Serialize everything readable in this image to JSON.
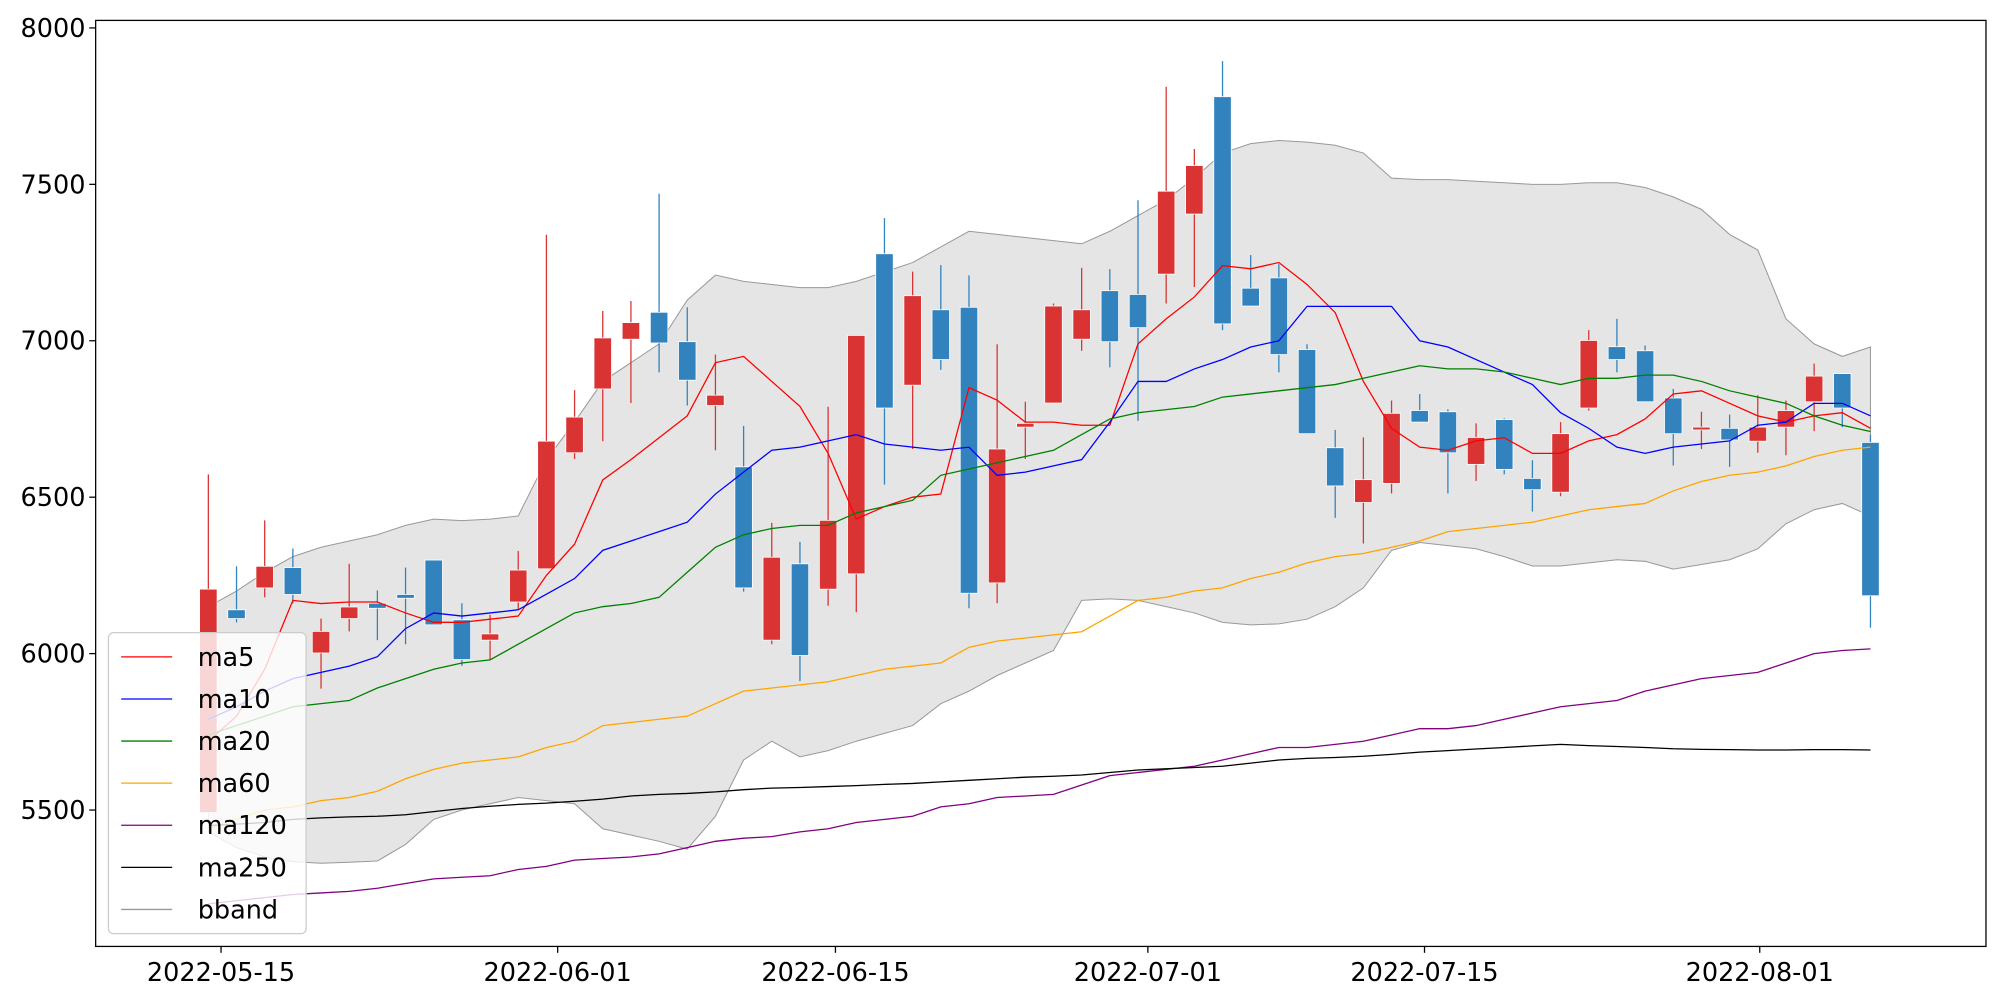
{
  "chart_data": {
    "type": "candlestick",
    "categories": [
      null,
      null,
      null,
      null,
      null,
      null,
      null,
      null,
      null,
      null,
      null,
      null,
      null,
      null,
      null,
      null,
      null,
      null,
      null,
      null,
      null,
      null,
      null,
      null,
      null,
      null,
      null,
      null,
      null,
      null,
      null,
      null,
      null,
      null,
      null,
      null,
      null,
      null,
      null,
      null,
      null,
      null,
      null,
      null,
      null,
      null,
      null,
      null,
      null,
      null,
      null,
      null,
      null,
      null,
      null,
      null,
      null,
      null,
      null,
      null
    ],
    "open": [
      5492,
      6140,
      6210,
      6275,
      6002,
      6112,
      6161,
      6189,
      6299,
      6108,
      6043,
      6165,
      6271,
      6642,
      6846,
      7005,
      7091,
      6997,
      6793,
      6597,
      6043,
      6287,
      6206,
      6255,
      7278,
      6858,
      7099,
      7107,
      6226,
      6724,
      6801,
      7005,
      7160,
      7148,
      7213,
      7405,
      7780,
      7168,
      7201,
      6972,
      6658,
      6483,
      6544,
      6777,
      6773,
      6605,
      6748,
      6560,
      6516,
      6785,
      6981,
      6968,
      6817,
      6715,
      6720,
      6679,
      6724,
      6805,
      6895,
      6675
    ],
    "high": [
      6573,
      6279,
      6426,
      6336,
      6112,
      6287,
      6202,
      6275,
      6299,
      6161,
      6124,
      6328,
      7339,
      6842,
      7095,
      7127,
      7470,
      7107,
      6956,
      6728,
      6418,
      6357,
      6789,
      7017,
      7392,
      7221,
      7242,
      7209,
      6989,
      6805,
      7119,
      7233,
      7229,
      7449,
      7812,
      7613,
      7894,
      7274,
      7245,
      6989,
      6715,
      6691,
      6809,
      6830,
      6781,
      6736,
      6752,
      6618,
      6740,
      7034,
      7070,
      6985,
      6846,
      6773,
      6764,
      6826,
      6809,
      6927,
      6895,
      6699
    ],
    "low": [
      5490,
      6100,
      6180,
      6160,
      5888,
      6071,
      6043,
      6030,
      6092,
      5961,
      5981,
      6140,
      6271,
      6622,
      6679,
      6801,
      6899,
      6793,
      6650,
      6198,
      6030,
      5912,
      6153,
      6132,
      6540,
      6654,
      6907,
      6145,
      6161,
      6622,
      6801,
      6968,
      6915,
      6744,
      7119,
      7172,
      7034,
      7111,
      6899,
      6703,
      6434,
      6352,
      6512,
      6740,
      6512,
      6552,
      6573,
      6454,
      6503,
      6777,
      6899,
      6805,
      6601,
      6654,
      6597,
      6642,
      6634,
      6711,
      6724,
      6083
    ],
    "close": [
      6206,
      6112,
      6279,
      6189,
      6071,
      6149,
      6145,
      6177,
      6092,
      5981,
      6063,
      6267,
      6679,
      6756,
      7009,
      7058,
      6993,
      6874,
      6826,
      6210,
      6308,
      5994,
      6426,
      7017,
      6785,
      7144,
      6940,
      6193,
      6654,
      6736,
      7111,
      7099,
      6997,
      7042,
      7478,
      7560,
      7054,
      7111,
      6956,
      6703,
      6536,
      6556,
      6768,
      6740,
      6642,
      6691,
      6589,
      6524,
      6703,
      7001,
      6940,
      6805,
      6703,
      6724,
      6683,
      6724,
      6777,
      6887,
      6785,
      6185
    ],
    "up_color": "#d93333",
    "down_color": "#3182bd",
    "series": [
      {
        "name": "ma5",
        "color": "#ff0000",
        "values": [
          5720,
          5800,
          5950,
          6170,
          6160,
          6165,
          6165,
          6130,
          6100,
          6100,
          6110,
          6120,
          6250,
          6350,
          6555,
          6620,
          6690,
          6760,
          6930,
          6950,
          6870,
          6790,
          6640,
          6430,
          6470,
          6500,
          6510,
          6850,
          6810,
          6740,
          6740,
          6730,
          6730,
          6990,
          7070,
          7140,
          7240,
          7230,
          7250,
          7180,
          7090,
          6870,
          6720,
          6660,
          6650,
          6680,
          6690,
          6640,
          6640,
          6680,
          6700,
          6750,
          6830,
          6840,
          6800,
          6760,
          6740,
          6760,
          6770,
          6720
        ]
      },
      {
        "name": "ma10",
        "color": "#0000ff",
        "values": [
          5790,
          5830,
          5880,
          5920,
          5940,
          5960,
          5990,
          6080,
          6130,
          6120,
          6130,
          6140,
          6190,
          6240,
          6330,
          6360,
          6390,
          6420,
          6510,
          6580,
          6650,
          6660,
          6680,
          6700,
          6670,
          6660,
          6650,
          6660,
          6570,
          6580,
          6600,
          6620,
          6740,
          6870,
          6870,
          6910,
          6940,
          6980,
          7000,
          7110,
          7110,
          7110,
          7110,
          7000,
          6980,
          6940,
          6900,
          6860,
          6770,
          6720,
          6660,
          6640,
          6660,
          6670,
          6680,
          6730,
          6740,
          6800,
          6800,
          6760
        ]
      },
      {
        "name": "ma20",
        "color": "#008000",
        "values": [
          5740,
          5770,
          5800,
          5830,
          5840,
          5850,
          5890,
          5920,
          5950,
          5970,
          5980,
          6030,
          6080,
          6130,
          6150,
          6160,
          6180,
          6260,
          6340,
          6380,
          6400,
          6410,
          6410,
          6450,
          6470,
          6490,
          6570,
          6590,
          6610,
          6630,
          6650,
          6700,
          6750,
          6770,
          6780,
          6790,
          6820,
          6830,
          6840,
          6850,
          6860,
          6880,
          6900,
          6920,
          6910,
          6910,
          6900,
          6880,
          6860,
          6880,
          6880,
          6890,
          6890,
          6870,
          6840,
          6820,
          6800,
          6760,
          6730,
          6710
        ]
      },
      {
        "name": "ma60",
        "color": "#ffa500",
        "values": [
          5440,
          5470,
          5500,
          5510,
          5530,
          5540,
          5560,
          5600,
          5630,
          5650,
          5660,
          5670,
          5700,
          5720,
          5770,
          5780,
          5790,
          5800,
          5840,
          5880,
          5890,
          5900,
          5910,
          5930,
          5950,
          5960,
          5970,
          6020,
          6040,
          6050,
          6060,
          6070,
          6120,
          6170,
          6180,
          6200,
          6210,
          6240,
          6260,
          6290,
          6310,
          6320,
          6340,
          6360,
          6390,
          6400,
          6410,
          6420,
          6440,
          6460,
          6470,
          6480,
          6520,
          6550,
          6570,
          6580,
          6600,
          6630,
          6650,
          6660
        ]
      },
      {
        "name": "ma120",
        "color": "#800080",
        "values": [
          5200,
          5210,
          5220,
          5230,
          5235,
          5240,
          5250,
          5265,
          5280,
          5285,
          5290,
          5310,
          5320,
          5340,
          5345,
          5350,
          5360,
          5380,
          5400,
          5410,
          5415,
          5430,
          5440,
          5460,
          5470,
          5480,
          5510,
          5520,
          5540,
          5545,
          5550,
          5580,
          5610,
          5620,
          5630,
          5640,
          5660,
          5680,
          5700,
          5700,
          5710,
          5720,
          5740,
          5760,
          5760,
          5770,
          5790,
          5810,
          5830,
          5840,
          5850,
          5880,
          5900,
          5920,
          5930,
          5940,
          5970,
          6000,
          6010,
          6015
        ]
      },
      {
        "name": "ma250",
        "color": "#000000",
        "values": [
          5450,
          5455,
          5460,
          5470,
          5475,
          5478,
          5480,
          5485,
          5495,
          5505,
          5512,
          5518,
          5522,
          5528,
          5535,
          5545,
          5550,
          5553,
          5558,
          5565,
          5570,
          5572,
          5575,
          5578,
          5582,
          5585,
          5590,
          5595,
          5600,
          5605,
          5608,
          5612,
          5620,
          5628,
          5632,
          5636,
          5640,
          5650,
          5660,
          5665,
          5668,
          5672,
          5678,
          5685,
          5690,
          5695,
          5700,
          5705,
          5710,
          5706,
          5703,
          5700,
          5696,
          5694,
          5693,
          5692,
          5692,
          5693,
          5693,
          5692
        ]
      }
    ],
    "bband": {
      "name": "bband",
      "color": "#999999",
      "fill": "#e5e5e5",
      "upper": [
        6150,
        6200,
        6260,
        6310,
        6340,
        6360,
        6380,
        6410,
        6430,
        6425,
        6430,
        6440,
        6620,
        6740,
        6870,
        6930,
        6990,
        7130,
        7210,
        7190,
        7180,
        7170,
        7170,
        7190,
        7220,
        7250,
        7300,
        7350,
        7340,
        7330,
        7320,
        7310,
        7350,
        7400,
        7450,
        7520,
        7600,
        7630,
        7640,
        7635,
        7625,
        7600,
        7520,
        7515,
        7515,
        7510,
        7505,
        7500,
        7500,
        7505,
        7505,
        7490,
        7460,
        7420,
        7340,
        7290,
        7070,
        6990,
        6950,
        6980
      ],
      "lower": [
        5430,
        5380,
        5350,
        5335,
        5330,
        5333,
        5337,
        5390,
        5470,
        5500,
        5520,
        5540,
        5530,
        5520,
        5440,
        5420,
        5400,
        5375,
        5480,
        5660,
        5720,
        5670,
        5690,
        5720,
        5745,
        5770,
        5840,
        5880,
        5930,
        5970,
        6010,
        6170,
        6175,
        6170,
        6150,
        6130,
        6100,
        6092,
        6095,
        6110,
        6150,
        6210,
        6330,
        6355,
        6345,
        6335,
        6310,
        6280,
        6280,
        6290,
        6300,
        6295,
        6270,
        6285,
        6300,
        6335,
        6415,
        6460,
        6480,
        6440
      ]
    },
    "xlim": [
      -4,
      63.1
    ],
    "xticks": [
      {
        "value": 0.45,
        "label": "2022-05-15"
      },
      {
        "value": 12.4,
        "label": "2022-06-01"
      },
      {
        "value": 22.26,
        "label": "2022-06-15"
      },
      {
        "value": 33.35,
        "label": "2022-07-01"
      },
      {
        "value": 43.17,
        "label": "2022-07-15"
      },
      {
        "value": 55.07,
        "label": "2022-08-01"
      }
    ],
    "ylim": [
      5064,
      8024
    ],
    "yticks": [
      5500,
      6000,
      6500,
      7000,
      7500,
      8000
    ],
    "legend": "lower left"
  }
}
